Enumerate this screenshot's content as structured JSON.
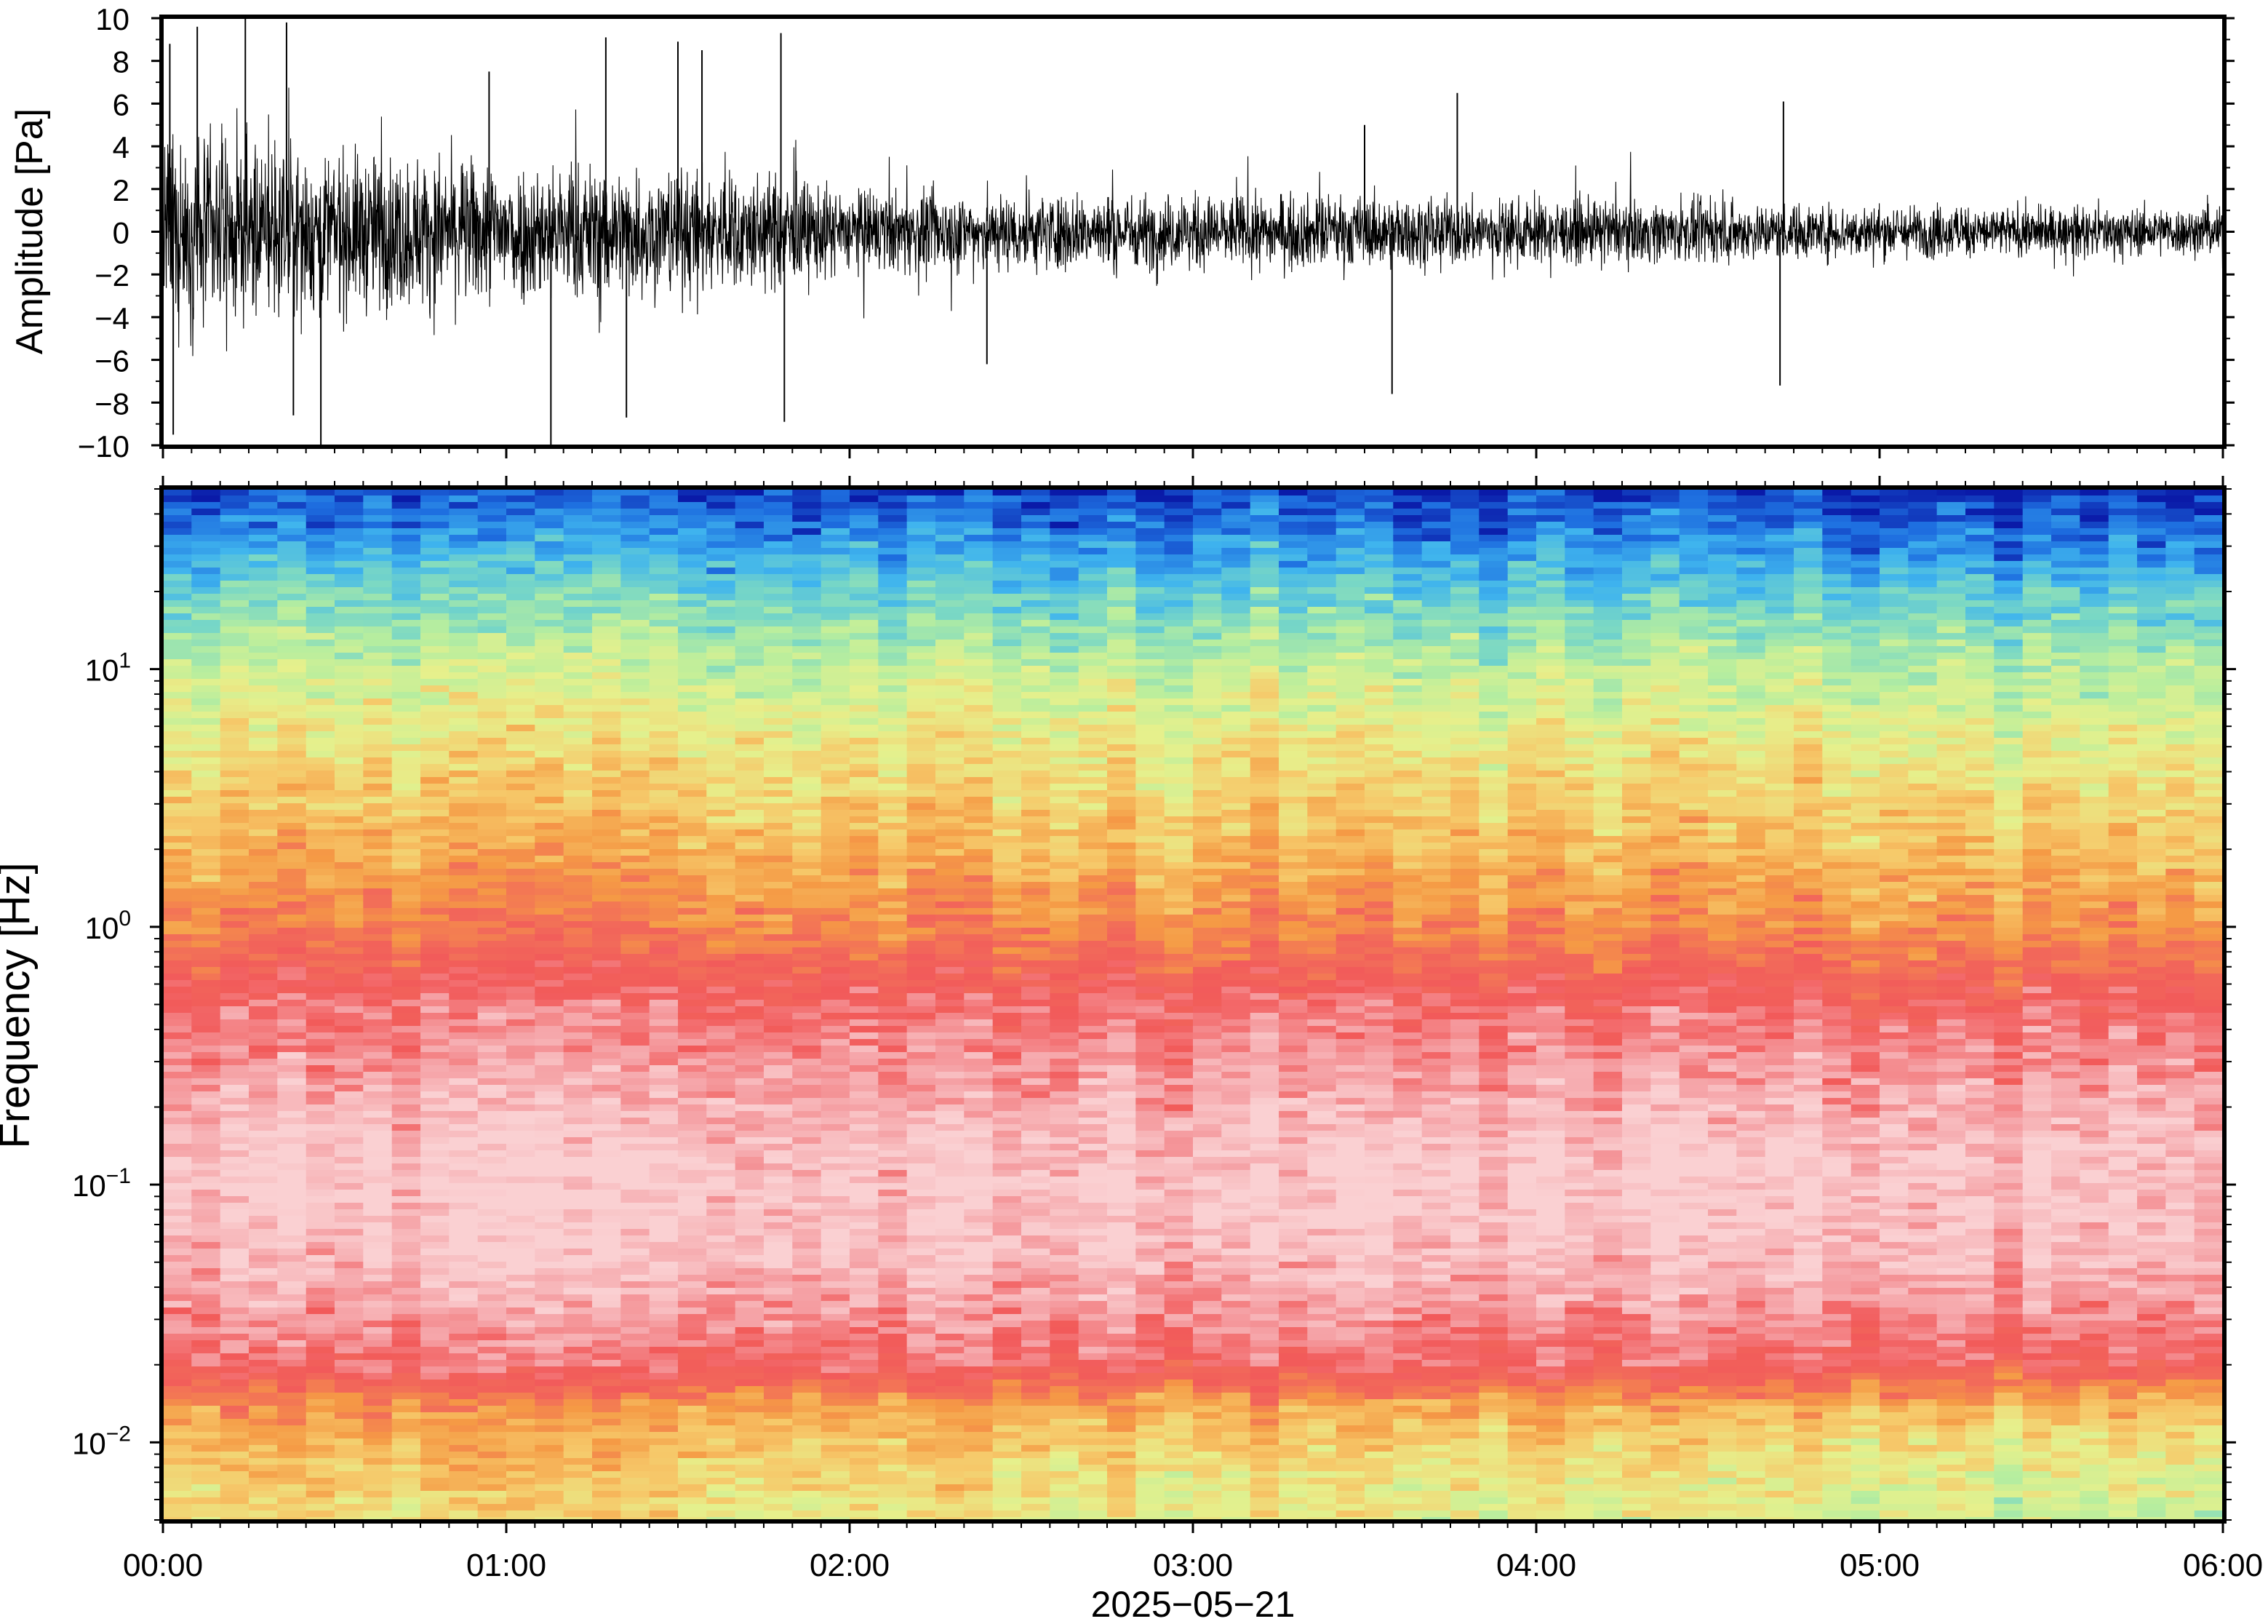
{
  "chart_data": [
    {
      "type": "line",
      "panel": "waveform",
      "title": "",
      "xlabel": "",
      "ylabel": "Amplitude [Pa]",
      "ylim": [
        -10,
        10
      ],
      "yticks": [
        -10,
        -8,
        -6,
        -4,
        -2,
        0,
        2,
        4,
        6,
        8,
        10
      ],
      "ytick_labels": [
        "−10",
        "−8",
        "−6",
        "−4",
        "−2",
        "0",
        "2",
        "4",
        "6",
        "8",
        "10"
      ],
      "x_start": "2025-05-21T00:00",
      "x_end": "2025-05-21T06:00",
      "grid": false,
      "envelope": {
        "hours": [
          0.0,
          0.5,
          1.0,
          1.5,
          1.8,
          2.0,
          2.5,
          3.0,
          3.5,
          4.0,
          4.5,
          5.0,
          5.5,
          6.0
        ],
        "upper": [
          3.8,
          3.3,
          2.9,
          2.6,
          2.3,
          1.7,
          1.6,
          1.5,
          1.45,
          1.3,
          1.2,
          1.1,
          1.0,
          1.0
        ],
        "lower": [
          -3.8,
          -3.3,
          -2.9,
          -2.6,
          -2.3,
          -1.7,
          -1.6,
          -1.5,
          -1.45,
          -1.3,
          -1.2,
          -1.1,
          -1.0,
          -1.0
        ]
      },
      "spikes": [
        {
          "hour": 0.02,
          "value": 8.8
        },
        {
          "hour": 0.03,
          "value": -9.5
        },
        {
          "hour": 0.1,
          "value": 9.6
        },
        {
          "hour": 0.24,
          "value": 10
        },
        {
          "hour": 0.36,
          "value": 9.8
        },
        {
          "hour": 0.38,
          "value": -8.6
        },
        {
          "hour": 0.46,
          "value": -10
        },
        {
          "hour": 0.95,
          "value": 7.5
        },
        {
          "hour": 1.13,
          "value": -10
        },
        {
          "hour": 1.29,
          "value": 9.1
        },
        {
          "hour": 1.35,
          "value": -8.7
        },
        {
          "hour": 1.5,
          "value": 8.9
        },
        {
          "hour": 1.57,
          "value": 8.5
        },
        {
          "hour": 1.8,
          "value": 9.3
        },
        {
          "hour": 1.81,
          "value": -8.9
        },
        {
          "hour": 2.4,
          "value": -6.2
        },
        {
          "hour": 3.5,
          "value": 5.0
        },
        {
          "hour": 3.58,
          "value": -7.6
        },
        {
          "hour": 3.77,
          "value": 6.5
        },
        {
          "hour": 4.71,
          "value": -7.2
        },
        {
          "hour": 4.72,
          "value": 6.1
        }
      ]
    },
    {
      "type": "heatmap",
      "panel": "spectrogram",
      "title": "",
      "xlabel": "2025−05−21",
      "ylabel": "Frequency [Hz]",
      "yscale": "log",
      "ylim": [
        0.005,
        50
      ],
      "yticks": [
        0.01,
        0.1,
        1,
        10
      ],
      "ytick_labels": [
        {
          "base": "10",
          "exp": "−2"
        },
        {
          "base": "10",
          "exp": "−1"
        },
        {
          "base": "10",
          "exp": "0"
        },
        {
          "base": "10",
          "exp": "1"
        }
      ],
      "xticks": [
        0,
        1,
        2,
        3,
        4,
        5,
        6
      ],
      "xtick_labels": [
        "00:00",
        "01:00",
        "02:00",
        "03:00",
        "04:00",
        "05:00",
        "06:00"
      ],
      "colormap": [
        "#0a1aa8",
        "#1e6fe0",
        "#3fb4ee",
        "#78d7c6",
        "#b8ee9e",
        "#e6f08c",
        "#f6c96a",
        "#f59a45",
        "#f26a5a",
        "#f25a5a",
        "#f5a0a4",
        "#fad0d2"
      ],
      "profile": {
        "freq_hz": [
          0.005,
          0.007,
          0.01,
          0.014,
          0.02,
          0.03,
          0.05,
          0.1,
          0.15,
          0.3,
          0.5,
          0.7,
          1,
          2,
          5,
          10,
          20,
          30,
          50
        ],
        "level_t0": [
          0.52,
          0.56,
          0.6,
          0.66,
          0.86,
          0.9,
          0.97,
          1.0,
          0.98,
          0.9,
          0.86,
          0.78,
          0.7,
          0.6,
          0.5,
          0.42,
          0.28,
          0.18,
          0.05
        ],
        "level_t6": [
          0.4,
          0.43,
          0.48,
          0.58,
          0.8,
          0.88,
          0.95,
          0.98,
          0.96,
          0.9,
          0.82,
          0.72,
          0.64,
          0.56,
          0.46,
          0.36,
          0.22,
          0.12,
          0.02
        ]
      }
    }
  ]
}
